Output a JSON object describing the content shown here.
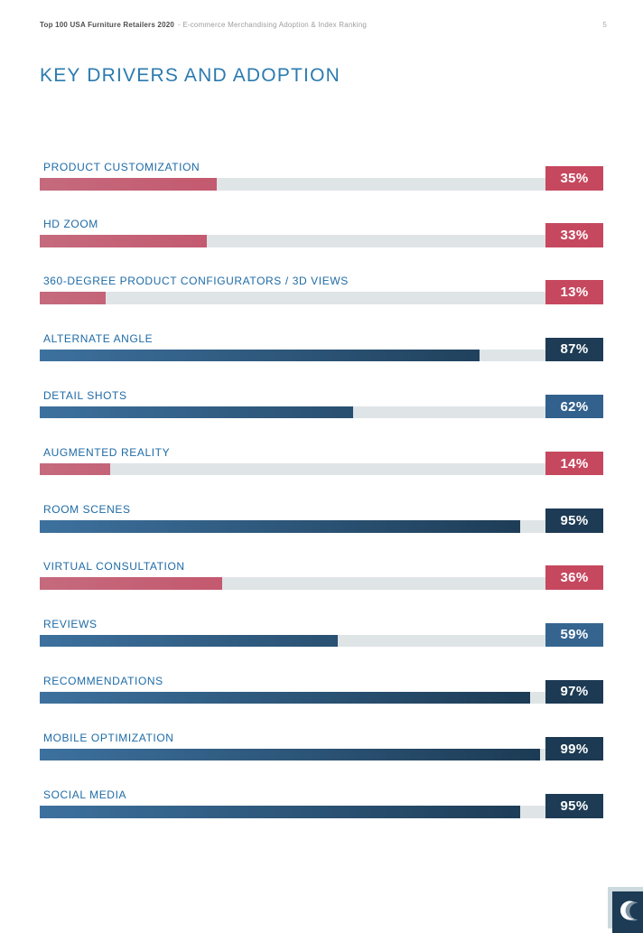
{
  "header": {
    "doc_title": "Top 100 USA Furniture Retailers 2020",
    "doc_subtitle": "- E-commerce Merchandising Adoption & Index Ranking",
    "page_number": "5"
  },
  "title": "KEY DRIVERS AND ADOPTION",
  "chart_data": {
    "type": "bar",
    "orientation": "horizontal",
    "title": "KEY DRIVERS AND ADOPTION",
    "unit": "%",
    "xlim": [
      0,
      100
    ],
    "grid": false,
    "legend": "none",
    "categories": [
      "PRODUCT CUSTOMIZATION",
      "HD ZOOM",
      "360-DEGREE PRODUCT CONFIGURATORS / 3D VIEWS",
      "ALTERNATE ANGLE",
      "DETAIL SHOTS",
      "AUGMENTED REALITY",
      "ROOM SCENES",
      "VIRTUAL CONSULTATION",
      "REVIEWS",
      "RECOMMENDATIONS",
      "MOBILE OPTIMIZATION",
      "SOCIAL MEDIA"
    ],
    "values": [
      35,
      33,
      13,
      87,
      62,
      14,
      95,
      36,
      59,
      97,
      99,
      95
    ],
    "items": [
      {
        "label": "PRODUCT CUSTOMIZATION",
        "value": 35,
        "display": "35%",
        "series": "red",
        "badge_color": "#c6485f"
      },
      {
        "label": "HD ZOOM",
        "value": 33,
        "display": "33%",
        "series": "red",
        "badge_color": "#c6485f"
      },
      {
        "label": "360-DEGREE PRODUCT CONFIGURATORS / 3D VIEWS",
        "value": 13,
        "display": "13%",
        "series": "red",
        "badge_color": "#c6485f"
      },
      {
        "label": "ALTERNATE ANGLE",
        "value": 87,
        "display": "87%",
        "series": "blue",
        "badge_color": "#1e3c55"
      },
      {
        "label": "DETAIL SHOTS",
        "value": 62,
        "display": "62%",
        "series": "blue",
        "badge_color": "#31618c"
      },
      {
        "label": "AUGMENTED REALITY",
        "value": 14,
        "display": "14%",
        "series": "red",
        "badge_color": "#c6485f"
      },
      {
        "label": "ROOM SCENES",
        "value": 95,
        "display": "95%",
        "series": "blue",
        "badge_color": "#1d3b54"
      },
      {
        "label": "VIRTUAL CONSULTATION",
        "value": 36,
        "display": "36%",
        "series": "red",
        "badge_color": "#c6485f"
      },
      {
        "label": "REVIEWS",
        "value": 59,
        "display": "59%",
        "series": "blue",
        "badge_color": "#35658f"
      },
      {
        "label": "RECOMMENDATIONS",
        "value": 97,
        "display": "97%",
        "series": "blue",
        "badge_color": "#1c3a53"
      },
      {
        "label": "MOBILE OPTIMIZATION",
        "value": 99,
        "display": "99%",
        "series": "blue",
        "badge_color": "#1c3a53"
      },
      {
        "label": "SOCIAL MEDIA",
        "value": 95,
        "display": "95%",
        "series": "blue",
        "badge_color": "#1d3b54"
      }
    ],
    "palette": {
      "red": {
        "from": "#c56a7d",
        "to": "#c33a56"
      },
      "blue": {
        "from": "#3d719e",
        "to": "#1c3a53"
      },
      "track": "#dfe4e7",
      "title_color": "#2b7ab0",
      "label_color": "#1e6ba6"
    }
  },
  "footer": {
    "logo": "crescent-logo"
  }
}
